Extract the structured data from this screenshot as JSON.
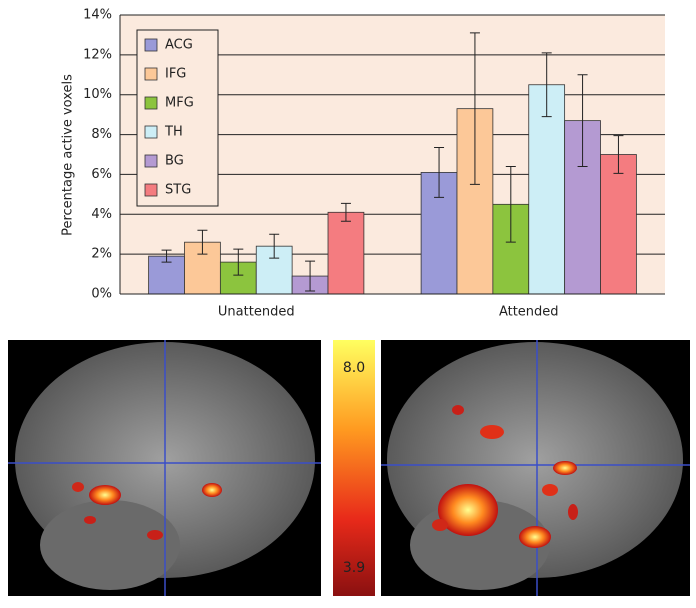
{
  "chart_data": {
    "type": "bar",
    "y_label": "Percentage active voxels",
    "categories": [
      "Unattended",
      "Attended"
    ],
    "series": [
      {
        "name": "ACG",
        "color": "#9a9ad8",
        "values": [
          1.9,
          6.1
        ],
        "errors": [
          0.3,
          1.25
        ]
      },
      {
        "name": "IFG",
        "color": "#fcc898",
        "values": [
          2.6,
          9.3
        ],
        "errors": [
          0.6,
          3.8
        ]
      },
      {
        "name": "MFG",
        "color": "#8cc43e",
        "values": [
          1.6,
          4.5
        ],
        "errors": [
          0.65,
          1.9
        ]
      },
      {
        "name": "TH",
        "color": "#cdeef6",
        "values": [
          2.4,
          10.5
        ],
        "errors": [
          0.6,
          1.6
        ]
      },
      {
        "name": "BG",
        "color": "#b49ad2",
        "values": [
          0.9,
          8.7
        ],
        "errors": [
          0.75,
          2.3
        ]
      },
      {
        "name": "STG",
        "color": "#f47c80",
        "values": [
          4.1,
          7.0
        ],
        "errors": [
          0.45,
          0.95
        ]
      }
    ],
    "ylim": [
      0,
      14
    ],
    "yticks": [
      {
        "value": 0,
        "label": "0%"
      },
      {
        "value": 2,
        "label": "2%"
      },
      {
        "value": 4,
        "label": "4%"
      },
      {
        "value": 6,
        "label": "6%"
      },
      {
        "value": 8,
        "label": "8%"
      },
      {
        "value": 10,
        "label": "10%"
      },
      {
        "value": 12,
        "label": "12%"
      },
      {
        "value": 14,
        "label": "14%"
      }
    ],
    "grid": true,
    "colorbar": {
      "ticks": [
        {
          "value": 8,
          "label": "8.0"
        },
        {
          "value": 3.9,
          "label": "3.9"
        }
      ]
    }
  }
}
